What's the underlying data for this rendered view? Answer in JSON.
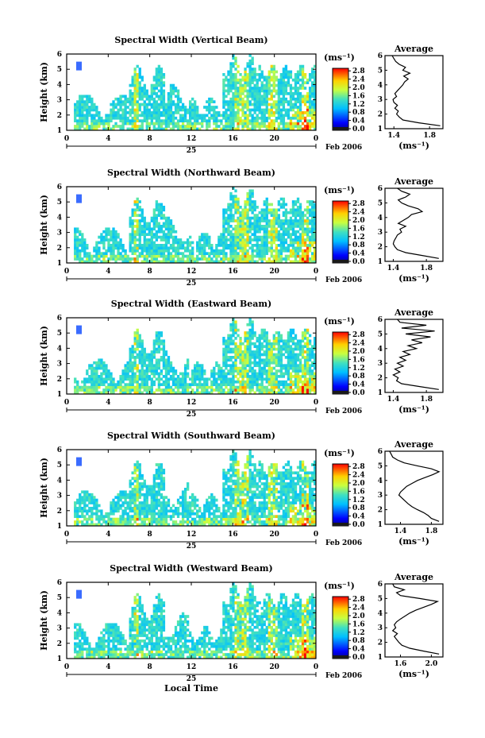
{
  "chart_data": [
    {
      "type": "heatmap",
      "title": "Spectral Width (Vertical Beam)",
      "ylabel": "Height (km)",
      "ylim": [
        1,
        6
      ],
      "yticks": [
        "1",
        "2",
        "3",
        "4",
        "5",
        "6"
      ],
      "xticks": [
        "0",
        "4",
        "8",
        "12",
        "16",
        "20",
        "0"
      ],
      "xlim": [
        0,
        24
      ],
      "day_label": "25",
      "date_label": "Feb 2006",
      "colorbar": {
        "unit": "(ms⁻¹)",
        "ticks": [
          "0.0",
          "0.4",
          "0.8",
          "1.2",
          "1.6",
          "2.0",
          "2.4",
          "2.8"
        ],
        "range": [
          0,
          3.0
        ]
      },
      "profile": {
        "title": "Average",
        "xlabel": "(ms⁻¹)",
        "xticks": [
          "1.4",
          "1.8"
        ],
        "xtick_values": [
          1.4,
          1.8
        ],
        "xlim": [
          1.3,
          1.95
        ],
        "heights": [
          1.2,
          1.4,
          1.6,
          1.8,
          2.0,
          2.2,
          2.4,
          2.6,
          2.8,
          3.0,
          3.2,
          3.4,
          3.6,
          3.8,
          4.0,
          4.2,
          4.4,
          4.6,
          4.8,
          5.0,
          5.2,
          5.4,
          5.6,
          5.8,
          6.0
        ],
        "values": [
          1.92,
          1.68,
          1.5,
          1.46,
          1.43,
          1.45,
          1.41,
          1.44,
          1.4,
          1.39,
          1.43,
          1.41,
          1.44,
          1.47,
          1.5,
          1.52,
          1.56,
          1.51,
          1.58,
          1.5,
          1.53,
          1.46,
          1.42,
          1.4,
          1.38
        ]
      }
    },
    {
      "type": "heatmap",
      "title": "Spectral Width (Northward Beam)",
      "ylabel": "Height (km)",
      "ylim": [
        1,
        6
      ],
      "yticks": [
        "1",
        "2",
        "3",
        "4",
        "5",
        "6"
      ],
      "xticks": [
        "0",
        "4",
        "8",
        "12",
        "16",
        "20",
        "0"
      ],
      "xlim": [
        0,
        24
      ],
      "day_label": "25",
      "date_label": "Feb 2006",
      "colorbar": {
        "unit": "(ms⁻¹)",
        "ticks": [
          "0.0",
          "0.4",
          "0.8",
          "1.2",
          "1.6",
          "2.0",
          "2.4",
          "2.8"
        ],
        "range": [
          0,
          3.0
        ]
      },
      "profile": {
        "title": "Average",
        "xlabel": "(ms⁻¹)",
        "xticks": [
          "1.4",
          "1.8"
        ],
        "xtick_values": [
          1.4,
          1.8
        ],
        "xlim": [
          1.3,
          2.0
        ],
        "heights": [
          1.2,
          1.4,
          1.6,
          1.8,
          2.0,
          2.2,
          2.4,
          2.6,
          2.8,
          3.0,
          3.2,
          3.4,
          3.6,
          3.8,
          4.0,
          4.2,
          4.4,
          4.6,
          4.8,
          5.0,
          5.2,
          5.4,
          5.6,
          5.8,
          6.0
        ],
        "values": [
          1.95,
          1.75,
          1.55,
          1.45,
          1.42,
          1.4,
          1.41,
          1.43,
          1.45,
          1.5,
          1.48,
          1.55,
          1.46,
          1.52,
          1.58,
          1.62,
          1.75,
          1.7,
          1.58,
          1.5,
          1.46,
          1.55,
          1.6,
          1.5,
          1.45
        ]
      }
    },
    {
      "type": "heatmap",
      "title": "Spectral Width (Eastward Beam)",
      "ylabel": "Height (km)",
      "ylim": [
        1,
        6
      ],
      "yticks": [
        "1",
        "2",
        "3",
        "4",
        "5",
        "6"
      ],
      "xticks": [
        "0",
        "4",
        "8",
        "12",
        "16",
        "20",
        "0"
      ],
      "xlim": [
        0,
        24
      ],
      "day_label": "25",
      "date_label": "Feb 2006",
      "colorbar": {
        "unit": "(ms⁻¹)",
        "ticks": [
          "0.0",
          "0.4",
          "0.8",
          "1.2",
          "1.6",
          "2.0",
          "2.4",
          "2.8"
        ],
        "range": [
          0,
          3.0
        ]
      },
      "profile": {
        "title": "Average",
        "xlabel": "(ms⁻¹)",
        "xticks": [
          "1.4",
          "1.8"
        ],
        "xtick_values": [
          1.4,
          1.8
        ],
        "xlim": [
          1.3,
          2.0
        ],
        "heights": [
          1.2,
          1.4,
          1.6,
          1.8,
          2.0,
          2.2,
          2.4,
          2.6,
          2.8,
          3.0,
          3.2,
          3.4,
          3.6,
          3.8,
          4.0,
          4.2,
          4.4,
          4.6,
          4.8,
          5.0,
          5.2,
          5.4,
          5.6,
          5.8,
          6.0
        ],
        "values": [
          1.95,
          1.72,
          1.5,
          1.44,
          1.46,
          1.4,
          1.48,
          1.42,
          1.52,
          1.45,
          1.55,
          1.48,
          1.6,
          1.52,
          1.68,
          1.58,
          1.75,
          1.62,
          1.85,
          1.55,
          1.9,
          1.5,
          1.8,
          1.48,
          1.45
        ]
      }
    },
    {
      "type": "heatmap",
      "title": "Spectral Width (Southward Beam)",
      "ylabel": "Height (km)",
      "ylim": [
        1,
        6
      ],
      "yticks": [
        "1",
        "2",
        "3",
        "4",
        "5",
        "6"
      ],
      "xticks": [
        "0",
        "4",
        "8",
        "12",
        "16",
        "20",
        "0"
      ],
      "xlim": [
        0,
        24
      ],
      "day_label": "25",
      "date_label": "Feb 2006",
      "colorbar": {
        "unit": "(ms⁻¹)",
        "ticks": [
          "0.0",
          "0.4",
          "0.8",
          "1.2",
          "1.6",
          "2.0",
          "2.4",
          "2.8"
        ],
        "range": [
          0,
          3.0
        ]
      },
      "profile": {
        "title": "Average",
        "xlabel": "(ms⁻¹)",
        "xticks": [
          "1.4",
          "1.8"
        ],
        "xtick_values": [
          1.4,
          1.8
        ],
        "xlim": [
          1.2,
          1.95
        ],
        "heights": [
          1.2,
          1.4,
          1.6,
          1.8,
          2.0,
          2.2,
          2.4,
          2.6,
          2.8,
          3.0,
          3.2,
          3.4,
          3.6,
          3.8,
          4.0,
          4.2,
          4.4,
          4.6,
          4.8,
          5.0,
          5.2,
          5.4,
          5.6,
          5.8,
          6.0
        ],
        "values": [
          1.9,
          1.8,
          1.76,
          1.7,
          1.62,
          1.55,
          1.5,
          1.46,
          1.42,
          1.38,
          1.4,
          1.44,
          1.48,
          1.55,
          1.62,
          1.72,
          1.82,
          1.9,
          1.8,
          1.62,
          1.45,
          1.36,
          1.3,
          1.28,
          1.26
        ]
      }
    },
    {
      "type": "heatmap",
      "title": "Spectral Width (Westward Beam)",
      "ylabel": "Height (km)",
      "ylim": [
        1,
        6
      ],
      "yticks": [
        "1",
        "2",
        "3",
        "4",
        "5",
        "6"
      ],
      "xticks": [
        "0",
        "4",
        "8",
        "12",
        "16",
        "20",
        "0"
      ],
      "xlim": [
        0,
        24
      ],
      "day_label": "25",
      "date_label": "Feb 2006",
      "xlabel": "Local Time",
      "colorbar": {
        "unit": "(ms⁻¹)",
        "ticks": [
          "0.0",
          "0.4",
          "0.8",
          "1.2",
          "1.6",
          "2.0",
          "2.4",
          "2.8"
        ],
        "range": [
          0,
          3.0
        ]
      },
      "profile": {
        "title": "Average",
        "xlabel": "(ms⁻¹)",
        "xticks": [
          "1.6",
          "2.0"
        ],
        "xtick_values": [
          1.6,
          2.0
        ],
        "xlim": [
          1.4,
          2.15
        ],
        "heights": [
          1.2,
          1.4,
          1.6,
          1.8,
          2.0,
          2.2,
          2.4,
          2.6,
          2.8,
          3.0,
          3.2,
          3.4,
          3.6,
          3.8,
          4.0,
          4.2,
          4.4,
          4.6,
          4.8,
          5.0,
          5.2,
          5.4,
          5.6,
          5.8,
          6.0
        ],
        "values": [
          2.1,
          1.9,
          1.72,
          1.62,
          1.58,
          1.55,
          1.52,
          1.56,
          1.5,
          1.54,
          1.52,
          1.55,
          1.6,
          1.66,
          1.72,
          1.8,
          1.9,
          2.0,
          2.08,
          1.85,
          1.6,
          1.55,
          1.65,
          1.52,
          1.5
        ]
      }
    }
  ]
}
